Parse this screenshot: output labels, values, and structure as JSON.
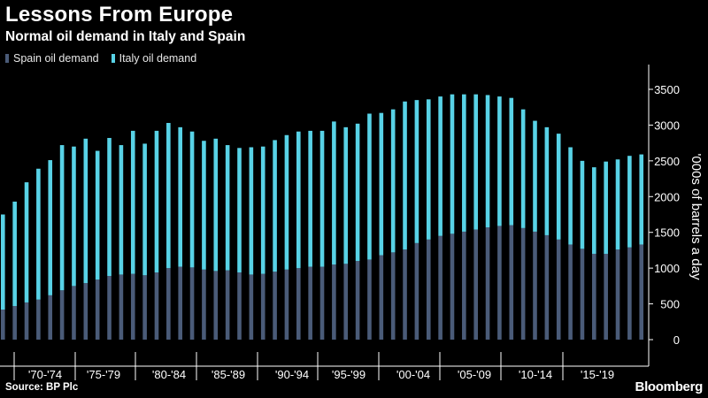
{
  "header": {
    "title": "Lessons From Europe",
    "subtitle": "Normal oil demand in Italy and Spain"
  },
  "footer": {
    "source": "Source: BP Plc",
    "brand": "Bloomberg"
  },
  "colors": {
    "spain": "#4a5b78",
    "italy": "#58d2e6",
    "background": "#000000",
    "axis": "#ffffff"
  },
  "chart_data": {
    "type": "bar",
    "stacked": true,
    "title": "Lessons From Europe",
    "subtitle": "Normal oil demand in Italy and Spain",
    "ylabel": "'000s of barrels a day",
    "ylim": [
      0,
      3650
    ],
    "yticks": [
      0,
      500,
      1000,
      1500,
      2000,
      2500,
      3000,
      3500
    ],
    "legend_position": "top-left",
    "grid": false,
    "x": [
      1965,
      1966,
      1967,
      1968,
      1969,
      1970,
      1971,
      1972,
      1973,
      1974,
      1975,
      1976,
      1977,
      1978,
      1979,
      1980,
      1981,
      1982,
      1983,
      1984,
      1985,
      1986,
      1987,
      1988,
      1989,
      1990,
      1991,
      1992,
      1993,
      1994,
      1995,
      1996,
      1997,
      1998,
      1999,
      2000,
      2001,
      2002,
      2003,
      2004,
      2005,
      2006,
      2007,
      2008,
      2009,
      2010,
      2011,
      2012,
      2013,
      2014,
      2015,
      2016,
      2017,
      2018,
      2019
    ],
    "xtick_labels": [
      "'70-'74",
      "'75-'79",
      "'80-'84",
      "'85-'89",
      "'90-'94",
      "'95-'99",
      "'00-'04",
      "'05-'09",
      "'10-'14",
      "'15-'19"
    ],
    "series": [
      {
        "name": "Spain oil demand",
        "values": [
          420,
          470,
          520,
          560,
          620,
          690,
          750,
          790,
          840,
          890,
          910,
          920,
          900,
          940,
          1000,
          1020,
          1010,
          980,
          960,
          970,
          940,
          910,
          920,
          950,
          980,
          1000,
          1020,
          1020,
          1050,
          1060,
          1100,
          1120,
          1180,
          1220,
          1260,
          1350,
          1400,
          1450,
          1480,
          1510,
          1540,
          1570,
          1590,
          1600,
          1560,
          1510,
          1460,
          1400,
          1330,
          1270,
          1200,
          1200,
          1260,
          1290,
          1330
        ]
      },
      {
        "name": "Italy oil demand",
        "values": [
          1330,
          1460,
          1680,
          1830,
          1890,
          2030,
          1950,
          2020,
          1800,
          1930,
          1810,
          2000,
          1840,
          1980,
          2030,
          1950,
          1900,
          1800,
          1850,
          1750,
          1740,
          1780,
          1780,
          1840,
          1880,
          1910,
          1900,
          1900,
          2000,
          1910,
          1920,
          2040,
          1990,
          2000,
          2070,
          2000,
          1960,
          1950,
          1950,
          1920,
          1890,
          1850,
          1810,
          1780,
          1660,
          1550,
          1510,
          1480,
          1360,
          1230,
          1210,
          1290,
          1260,
          1280,
          1260
        ]
      }
    ]
  }
}
